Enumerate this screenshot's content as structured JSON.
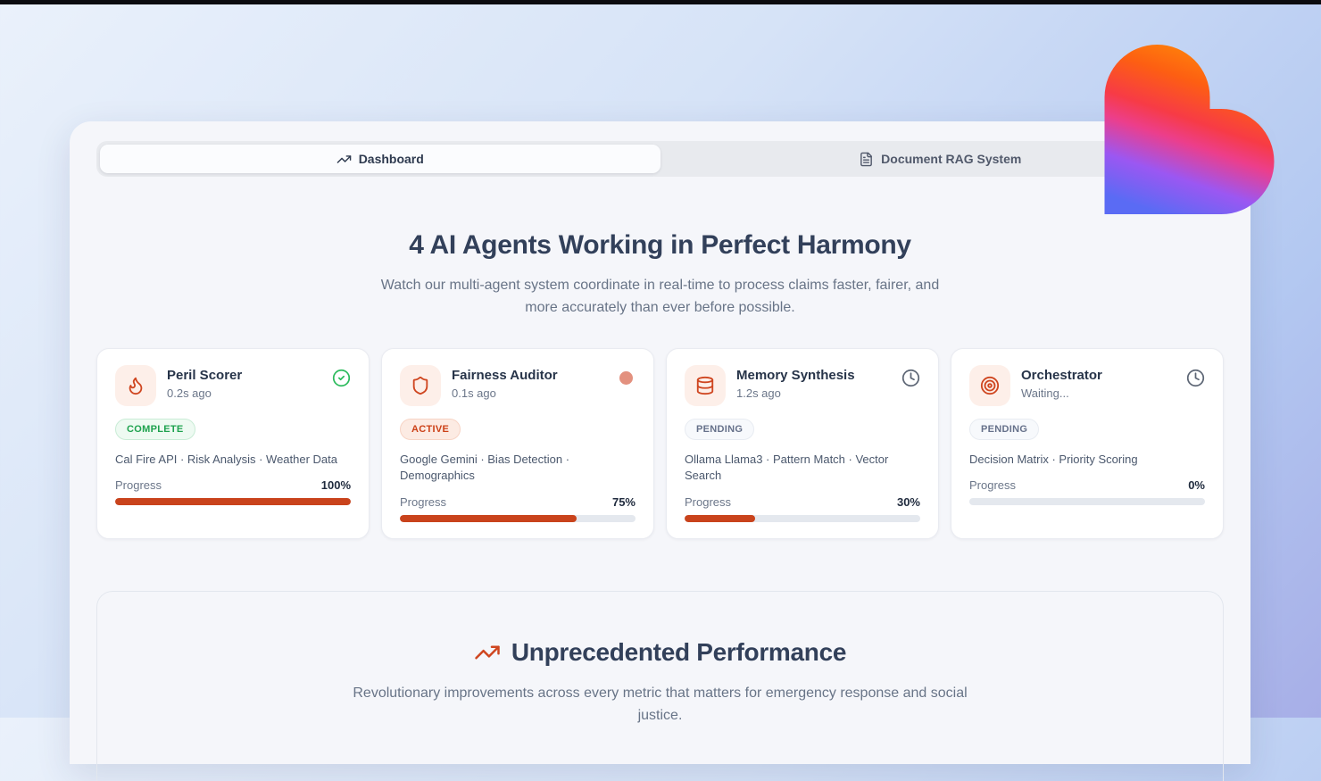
{
  "tabs": [
    {
      "label": "Dashboard",
      "icon": "trending-up-icon",
      "active": true
    },
    {
      "label": "Document RAG System",
      "icon": "file-text-icon",
      "active": false
    }
  ],
  "hero": {
    "title": "4 AI Agents Working in Perfect Harmony",
    "subtitle": "Watch our multi-agent system coordinate in real-time to process claims faster, fairer, and more accurately than ever before possible."
  },
  "agents": [
    {
      "name": "Peril Scorer",
      "time": "0.2s ago",
      "icon": "flame-icon",
      "status": "COMPLETE",
      "status_icon": "check-circle-icon",
      "tools": "Cal Fire API · Risk Analysis · Weather Data",
      "progress_label": "Progress",
      "progress_text": "100%",
      "progress_value": 100
    },
    {
      "name": "Fairness Auditor",
      "time": "0.1s ago",
      "icon": "shield-icon",
      "status": "ACTIVE",
      "status_icon": "pulse-dot",
      "tools": "Google Gemini · Bias Detection · Demographics",
      "progress_label": "Progress",
      "progress_text": "75%",
      "progress_value": 75
    },
    {
      "name": "Memory Synthesis",
      "time": "1.2s ago",
      "icon": "database-icon",
      "status": "PENDING",
      "status_icon": "clock-icon",
      "tools": "Ollama Llama3 · Pattern Match · Vector Search",
      "progress_label": "Progress",
      "progress_text": "30%",
      "progress_value": 30
    },
    {
      "name": "Orchestrator",
      "time": "Waiting...",
      "icon": "target-icon",
      "status": "PENDING",
      "status_icon": "clock-icon",
      "tools": "Decision Matrix · Priority Scoring",
      "progress_label": "Progress",
      "progress_text": "0%",
      "progress_value": 0
    }
  ],
  "performance": {
    "title": "Unprecedented Performance",
    "subtitle": "Revolutionary improvements across every metric that matters for emergency response and social justice."
  },
  "colors": {
    "accent_orange": "#cc4420",
    "progress_fill": "#c9431c",
    "complete_green": "#1ea24e",
    "active_dot": "#e3917f",
    "pending_gray": "#66718a",
    "heading": "#32405a",
    "heart_gradient": [
      "#ff8d07",
      "#fd5f12",
      "#f73b46",
      "#ec3e8b",
      "#9b57f2",
      "#5a6bf4"
    ]
  }
}
